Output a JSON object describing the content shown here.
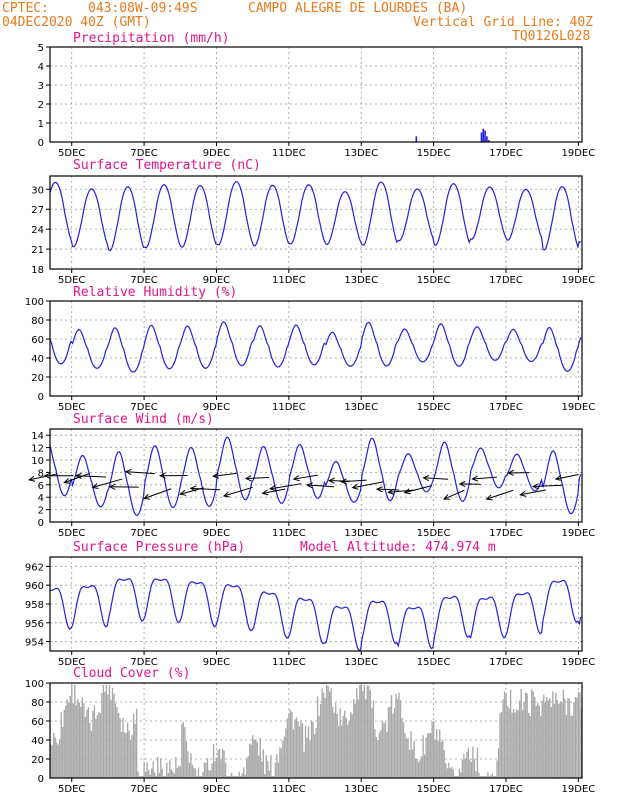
{
  "header": {
    "org": "CPTEC:",
    "coords": "043:08W-09:49S",
    "location": "CAMPO ALEGRE DE LOURDES (BA)",
    "run": "04DEC2020 40Z (GMT)",
    "grid_note": "Vertical Grid Line: 40Z",
    "model": "TQ0126L028"
  },
  "colors": {
    "header": "#e87a1c",
    "title": "#e0168a",
    "line": "#2222dd",
    "cloud": "#a9a9a9"
  },
  "x_axis": {
    "range_days": [
      4.4,
      19.1
    ],
    "ticks": [
      5,
      7,
      9,
      11,
      13,
      15,
      17,
      19
    ],
    "tick_labels": [
      "5DEC",
      "7DEC",
      "9DEC",
      "11DEC",
      "13DEC",
      "15DEC",
      "17DEC",
      "19DEC"
    ]
  },
  "chart_data": [
    {
      "type": "bar",
      "title": "Precipitation (mm/h)",
      "ylim": [
        0,
        5
      ],
      "yticks": [
        0,
        1,
        2,
        3,
        4,
        5
      ],
      "grid": true,
      "series": [
        {
          "x": [
            7.0,
            9.5,
            10.8,
            14.5,
            16.3,
            16.35,
            16.4,
            16.45,
            16.5
          ],
          "values": [
            0.03,
            0.02,
            0.03,
            0.3,
            0.5,
            0.7,
            0.6,
            0.3,
            0.1
          ]
        }
      ]
    },
    {
      "type": "line",
      "title": "Surface Temperature (nC)",
      "ylim": [
        18,
        32
      ],
      "yticks": [
        18,
        21,
        24,
        27,
        30
      ],
      "grid": true,
      "daily": {
        "max": 30.3,
        "min": 22.0,
        "min_first": 19.5
      }
    },
    {
      "type": "line",
      "title": "Relative Humidity (%)",
      "ylim": [
        0,
        100
      ],
      "yticks": [
        0,
        20,
        40,
        60,
        80,
        100
      ],
      "grid": true,
      "daily": {
        "max": 72,
        "min": 34,
        "max_first": 83
      }
    },
    {
      "type": "line",
      "title": "Surface Wind (m/s)",
      "ylim": [
        0,
        15
      ],
      "yticks": [
        0,
        2,
        4,
        6,
        8,
        10,
        12,
        14
      ],
      "grid": true,
      "note": "Wind speed line with direction arrows (mostly from the east)"
    },
    {
      "type": "line",
      "title": "Surface Pressure (hPa)",
      "subtitle": "Model Altitude: 474.974 m",
      "ylim": [
        953,
        963
      ],
      "yticks": [
        954,
        956,
        958,
        960,
        962
      ],
      "grid": true,
      "daily": {
        "max": 960.0,
        "min": 955.0
      }
    },
    {
      "type": "area",
      "title": "Cloud Cover (%)",
      "ylim": [
        0,
        100
      ],
      "yticks": [
        0,
        20,
        40,
        60,
        80,
        100
      ],
      "grid": true
    }
  ]
}
